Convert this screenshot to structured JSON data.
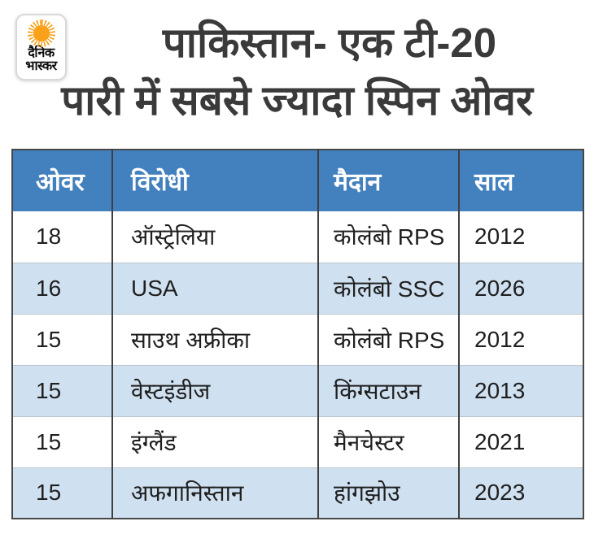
{
  "brand": {
    "name_line1": "दैनिक",
    "name_line2": "भास्कर"
  },
  "title": {
    "line1": "पाकिस्तान- एक टी-20",
    "line2": "पारी में सबसे ज्यादा स्पिन ओवर"
  },
  "colors": {
    "header_bg": "#4280BE",
    "alt_row_bg": "#CFE0F0",
    "row_bg": "#FFFFFF",
    "header_text": "#FFFFFF",
    "cell_text": "#1F1F1F",
    "title_text": "#3A3A3A",
    "sun": "#F9A11B"
  },
  "chart_data": {
    "type": "table",
    "title": "पाकिस्तान- एक टी-20 पारी में सबसे ज्यादा स्पिन ओवर",
    "columns": [
      "ओवर",
      "विरोधी",
      "मैदान",
      "साल"
    ],
    "rows": [
      [
        "18",
        "ऑस्ट्रेलिया",
        "कोलंबो RPS",
        "2012"
      ],
      [
        "16",
        "USA",
        "कोलंबो SSC",
        "2026"
      ],
      [
        "15",
        "साउथ अफ्रीका",
        "कोलंबो RPS",
        "2012"
      ],
      [
        "15",
        "वेस्टइंडीज",
        "किंग्सटाउन",
        "2013"
      ],
      [
        "15",
        "इंग्लैंड",
        "मैनचेस्टर",
        "2021"
      ],
      [
        "15",
        "अफगानिस्तान",
        "हांगझोउ",
        "2023"
      ]
    ],
    "layout": {
      "header_row_striped": false,
      "zebra_striping": true,
      "first_striped_row_index": 1
    }
  }
}
